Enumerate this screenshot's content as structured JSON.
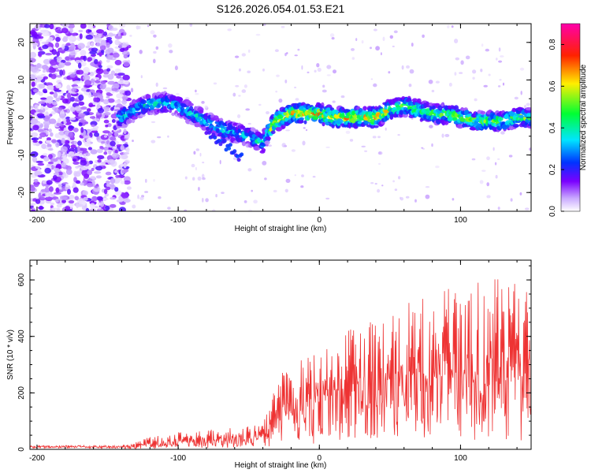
{
  "title": "S126.2026.054.01.53.E21",
  "chart_data": [
    {
      "type": "heatmap",
      "xlabel": "Height of straight line (km)",
      "ylabel": "Frequency (Hz)",
      "xlim": [
        -205,
        150
      ],
      "ylim": [
        -25,
        25
      ],
      "xticks": [
        -200,
        -100,
        0,
        100
      ],
      "yticks": [
        -20,
        -10,
        0,
        10,
        20
      ],
      "colorbar": {
        "label": "Normalized spectral amplitude",
        "range": [
          0,
          0.9
        ],
        "ticks": [
          0.0,
          0.2,
          0.4,
          0.6,
          0.8
        ]
      },
      "ridge": {
        "x": [
          -140,
          -125,
          -110,
          -100,
          -90,
          -80,
          -70,
          -60,
          -50,
          -40,
          -35,
          -30,
          -20,
          -10,
          0,
          10,
          20,
          30,
          40,
          50,
          60,
          70,
          80,
          90,
          100,
          110,
          120,
          130,
          140,
          150
        ],
        "y": [
          0,
          3,
          4,
          3,
          1,
          -1,
          -3,
          -4,
          -5,
          -7,
          -3,
          -1,
          1,
          1,
          1,
          0,
          0,
          0,
          0,
          2,
          3,
          2,
          1,
          1,
          0,
          -1,
          -1,
          -1,
          0,
          0
        ]
      }
    },
    {
      "type": "line",
      "xlabel": "Height of straight line (km)",
      "ylabel": "SNR (10 * v/v)",
      "xlim": [
        -205,
        150
      ],
      "ylim": [
        0,
        670
      ],
      "xticks": [
        -200,
        -100,
        0,
        100
      ],
      "yticks": [
        0,
        200,
        400,
        600
      ],
      "color": "#ee3333",
      "envelope": {
        "x": [
          -205,
          -140,
          -130,
          -120,
          -100,
          -80,
          -60,
          -40,
          -35,
          -30,
          -20,
          -10,
          0,
          20,
          40,
          60,
          80,
          100,
          120,
          140,
          150
        ],
        "y": [
          15,
          15,
          25,
          45,
          60,
          70,
          80,
          90,
          160,
          260,
          300,
          330,
          370,
          420,
          460,
          520,
          560,
          580,
          600,
          610,
          560
        ]
      }
    }
  ]
}
